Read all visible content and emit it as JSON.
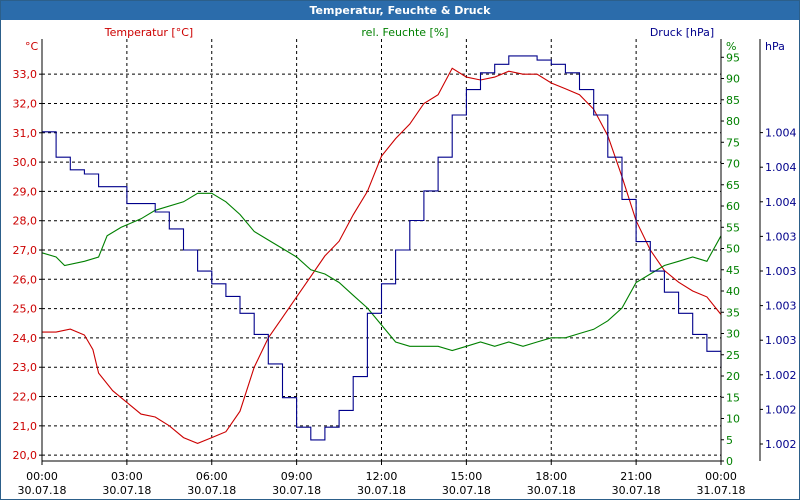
{
  "window": {
    "title": "Temperatur, Feuchte & Druck"
  },
  "colors": {
    "temperature": "#cc0000",
    "humidity": "#008000",
    "pressure": "#00008b",
    "grid": "#000000",
    "titlebar": "#2b6cab"
  },
  "chart_data": {
    "type": "line",
    "title": "Temperatur, Feuchte & Druck",
    "grid": true,
    "x_ticks": [
      {
        "hours": 0,
        "time": "00:00",
        "date": "30.07.18"
      },
      {
        "hours": 3,
        "time": "03:00",
        "date": "30.07.18"
      },
      {
        "hours": 6,
        "time": "06:00",
        "date": "30.07.18"
      },
      {
        "hours": 9,
        "time": "09:00",
        "date": "30.07.18"
      },
      {
        "hours": 12,
        "time": "12:00",
        "date": "30.07.18"
      },
      {
        "hours": 15,
        "time": "15:00",
        "date": "30.07.18"
      },
      {
        "hours": 18,
        "time": "18:00",
        "date": "30.07.18"
      },
      {
        "hours": 21,
        "time": "21:00",
        "date": "30.07.18"
      },
      {
        "hours": 24,
        "time": "00:00",
        "date": "31.07.18"
      }
    ],
    "axes": {
      "temperature": {
        "unit": "°C",
        "ylim": [
          19.8,
          34.2
        ],
        "ticks": [
          "20,0",
          "21,0",
          "22,0",
          "23,0",
          "24,0",
          "25,0",
          "26,0",
          "27,0",
          "28,0",
          "29,0",
          "30,0",
          "31,0",
          "32,0",
          "33,0"
        ],
        "tick_values": [
          20,
          21,
          22,
          23,
          24,
          25,
          26,
          27,
          28,
          29,
          30,
          31,
          32,
          33
        ]
      },
      "humidity": {
        "unit": "%",
        "ylim": [
          0,
          99.3
        ],
        "ticks": [
          "0",
          "5",
          "10",
          "15",
          "20",
          "25",
          "30",
          "35",
          "40",
          "45",
          "50",
          "55",
          "60",
          "65",
          "70",
          "75",
          "80",
          "85",
          "90",
          "95"
        ],
        "tick_values": [
          0,
          5,
          10,
          15,
          20,
          25,
          30,
          35,
          40,
          45,
          50,
          55,
          60,
          65,
          70,
          75,
          80,
          85,
          90,
          95
        ]
      },
      "pressure": {
        "unit": "hPa",
        "ticks": [
          "1.002",
          "1.002",
          "1.002",
          "1.003",
          "1.003",
          "1.003",
          "1.003",
          "1.004",
          "1.004",
          "1.004"
        ]
      }
    },
    "series": [
      {
        "name": "Temperatur [°C]",
        "axis": "temperature",
        "points": [
          [
            0,
            24.2
          ],
          [
            0.5,
            24.2
          ],
          [
            1,
            24.3
          ],
          [
            1.5,
            24.1
          ],
          [
            1.8,
            23.6
          ],
          [
            2,
            22.8
          ],
          [
            2.5,
            22.2
          ],
          [
            3,
            21.8
          ],
          [
            3.5,
            21.4
          ],
          [
            4,
            21.3
          ],
          [
            4.5,
            21.0
          ],
          [
            5,
            20.6
          ],
          [
            5.5,
            20.4
          ],
          [
            6,
            20.6
          ],
          [
            6.5,
            20.8
          ],
          [
            7,
            21.5
          ],
          [
            7.5,
            23.0
          ],
          [
            8,
            24.0
          ],
          [
            8.5,
            24.7
          ],
          [
            9,
            25.4
          ],
          [
            9.5,
            26.1
          ],
          [
            10,
            26.8
          ],
          [
            10.5,
            27.3
          ],
          [
            11,
            28.2
          ],
          [
            11.5,
            29.0
          ],
          [
            12,
            30.2
          ],
          [
            12.5,
            30.8
          ],
          [
            13,
            31.3
          ],
          [
            13.5,
            32.0
          ],
          [
            14,
            32.3
          ],
          [
            14.5,
            33.2
          ],
          [
            15,
            32.9
          ],
          [
            15.5,
            32.8
          ],
          [
            16,
            32.9
          ],
          [
            16.5,
            33.1
          ],
          [
            17,
            33.0
          ],
          [
            17.5,
            33.0
          ],
          [
            18,
            32.7
          ],
          [
            18.5,
            32.5
          ],
          [
            19,
            32.3
          ],
          [
            19.5,
            31.8
          ],
          [
            20,
            30.9
          ],
          [
            20.5,
            29.5
          ],
          [
            21,
            28.0
          ],
          [
            21.5,
            27.0
          ],
          [
            22,
            26.3
          ],
          [
            22.5,
            25.9
          ],
          [
            23,
            25.6
          ],
          [
            23.5,
            25.4
          ],
          [
            24,
            24.8
          ]
        ]
      },
      {
        "name": "rel. Feuchte [%]",
        "axis": "humidity",
        "points": [
          [
            0,
            49
          ],
          [
            0.5,
            48
          ],
          [
            0.8,
            46
          ],
          [
            1.5,
            47
          ],
          [
            2,
            48
          ],
          [
            2.3,
            53
          ],
          [
            2.8,
            55
          ],
          [
            3.5,
            57
          ],
          [
            4,
            59
          ],
          [
            5,
            61
          ],
          [
            5.5,
            63
          ],
          [
            6,
            63
          ],
          [
            6.5,
            61
          ],
          [
            7,
            58
          ],
          [
            7.5,
            54
          ],
          [
            8,
            52
          ],
          [
            8.5,
            50
          ],
          [
            9,
            48
          ],
          [
            9.5,
            45
          ],
          [
            10,
            44
          ],
          [
            10.5,
            42
          ],
          [
            11,
            39
          ],
          [
            11.5,
            36
          ],
          [
            12,
            32
          ],
          [
            12.5,
            28
          ],
          [
            13,
            27
          ],
          [
            13.5,
            27
          ],
          [
            14,
            27
          ],
          [
            14.5,
            26
          ],
          [
            15,
            27
          ],
          [
            15.5,
            28
          ],
          [
            16,
            27
          ],
          [
            16.5,
            28
          ],
          [
            17,
            27
          ],
          [
            17.5,
            28
          ],
          [
            18,
            29
          ],
          [
            18.5,
            29
          ],
          [
            19,
            30
          ],
          [
            19.5,
            31
          ],
          [
            20,
            33
          ],
          [
            20.5,
            36
          ],
          [
            21,
            42
          ],
          [
            21.5,
            44
          ],
          [
            22,
            46
          ],
          [
            22.5,
            47
          ],
          [
            23,
            48
          ],
          [
            23.5,
            47
          ],
          [
            24,
            53
          ]
        ]
      },
      {
        "name": "Druck [hPa]",
        "axis": "pressure",
        "points": [
          [
            0,
            78
          ],
          [
            0.5,
            72
          ],
          [
            1,
            69
          ],
          [
            1.5,
            68
          ],
          [
            2,
            65
          ],
          [
            3,
            61
          ],
          [
            4,
            59
          ],
          [
            4.5,
            55
          ],
          [
            5,
            50
          ],
          [
            5.5,
            45
          ],
          [
            6,
            42
          ],
          [
            6.5,
            39
          ],
          [
            7,
            35
          ],
          [
            7.5,
            30
          ],
          [
            8,
            23
          ],
          [
            8.5,
            15
          ],
          [
            9,
            8
          ],
          [
            9.5,
            5
          ],
          [
            10,
            8
          ],
          [
            10.5,
            12
          ],
          [
            11,
            20
          ],
          [
            11.5,
            35
          ],
          [
            12,
            42
          ],
          [
            12.5,
            50
          ],
          [
            13,
            57
          ],
          [
            13.5,
            64
          ],
          [
            14,
            72
          ],
          [
            14.5,
            82
          ],
          [
            15,
            88
          ],
          [
            15.5,
            92
          ],
          [
            16,
            94
          ],
          [
            16.5,
            96
          ],
          [
            17,
            96
          ],
          [
            17.5,
            95
          ],
          [
            18,
            94
          ],
          [
            18.5,
            92
          ],
          [
            19,
            88
          ],
          [
            19.5,
            82
          ],
          [
            20,
            72
          ],
          [
            20.5,
            62
          ],
          [
            21,
            52
          ],
          [
            21.5,
            45
          ],
          [
            22,
            40
          ],
          [
            22.5,
            35
          ],
          [
            23,
            30
          ],
          [
            23.5,
            26
          ],
          [
            24,
            22
          ]
        ]
      }
    ]
  }
}
